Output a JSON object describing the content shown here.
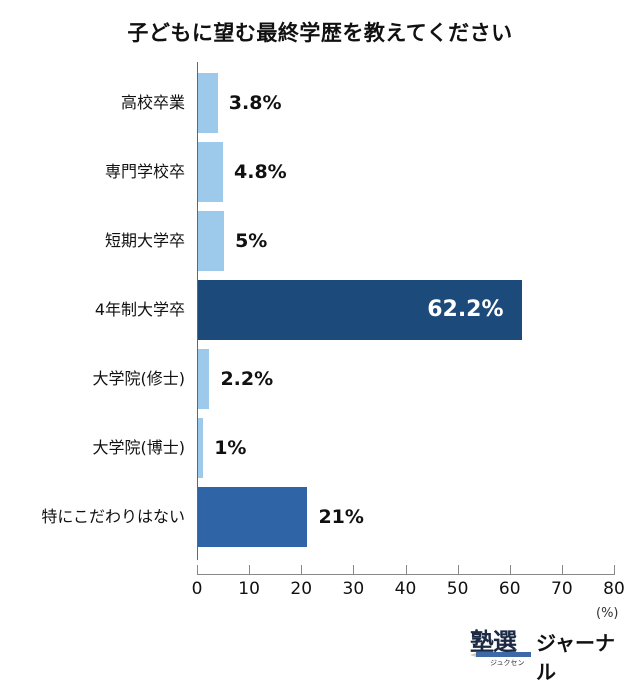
{
  "chart_data": {
    "type": "bar",
    "orientation": "horizontal",
    "title": "子どもに望む最終学歴を教えてください",
    "xlabel": "",
    "ylabel": "",
    "unit": "(%)",
    "xlim": [
      0,
      80
    ],
    "xticks": [
      0,
      10,
      20,
      30,
      40,
      50,
      60,
      70,
      80
    ],
    "grid": false,
    "categories": [
      "高校卒業",
      "専門学校卒",
      "短期大学卒",
      "4年制大学卒",
      "大学院(修士)",
      "大学院(博士)",
      "特にこだわりはない"
    ],
    "values": [
      3.8,
      4.8,
      5,
      62.2,
      2.2,
      1,
      21
    ],
    "value_labels": [
      "3.8%",
      "4.8%",
      "5%",
      "62.2%",
      "2.2%",
      "1%",
      "21%"
    ],
    "colors": [
      "#9dc9ea",
      "#9dc9ea",
      "#9dc9ea",
      "#1c4a7a",
      "#9dc9ea",
      "#9dc9ea",
      "#2f65a7"
    ]
  },
  "header": {
    "title": "子どもに望む最終学歴を教えてください"
  },
  "axis": {
    "ticks": [
      "0",
      "10",
      "20",
      "30",
      "40",
      "50",
      "60",
      "70",
      "80"
    ],
    "unit": "(%)"
  },
  "logo": {
    "kanji": "塾選",
    "ruby": "ジュクセン",
    "text": "ジャーナル"
  }
}
